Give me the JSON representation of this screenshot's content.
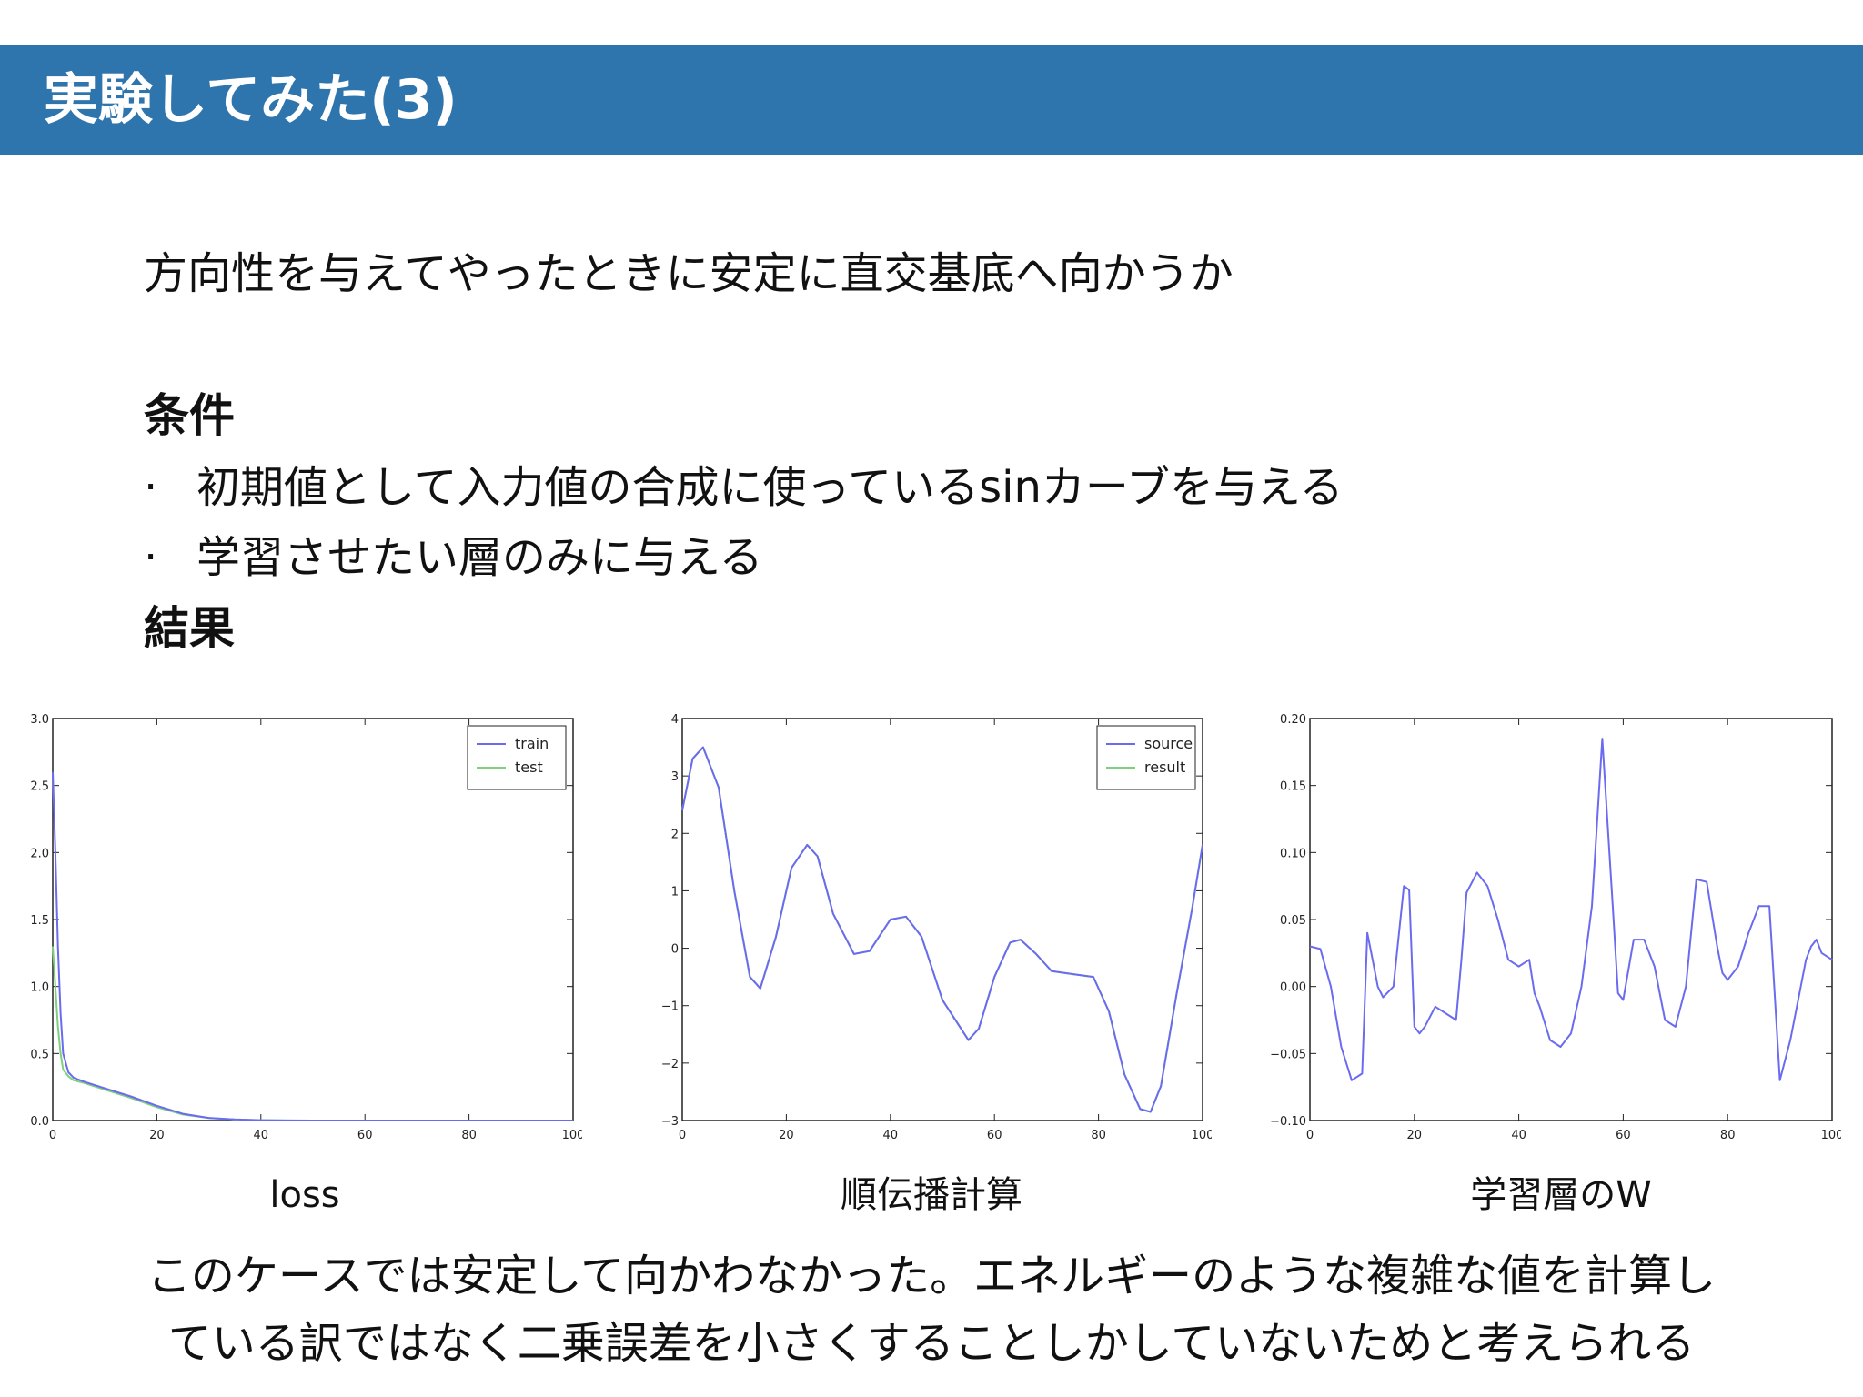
{
  "slide": {
    "title": "実験してみた(3)",
    "subtitle": "方向性を与えてやったときに安定に直交基底へ向かうか",
    "conditions_heading": "条件",
    "bullet_marker": "·",
    "conditions": [
      "初期値として入力値の合成に使っているsinカーブを与える",
      "学習させたい層のみに与える"
    ],
    "result_heading": "結果",
    "conclusion_lines": [
      "このケースでは安定して向かわなかった。エネルギーのような複雑な値を計算し",
      "ている訳ではなく二乗誤差を小さくすることしかしていないためと考えられる"
    ]
  },
  "chart_data": [
    {
      "type": "line",
      "caption": "loss",
      "xlim": [
        0,
        100
      ],
      "ylim": [
        0.0,
        3.0
      ],
      "xticks": [
        "0",
        "20",
        "40",
        "60",
        "80",
        "100"
      ],
      "yticks": [
        "0.0",
        "0.5",
        "1.0",
        "1.5",
        "2.0",
        "2.5",
        "3.0"
      ],
      "legend_placement": "top-right",
      "series": [
        {
          "name": "train",
          "color": "#6b6bf0",
          "x": [
            0,
            0.5,
            1,
            1.5,
            2,
            3,
            4,
            6,
            10,
            15,
            20,
            25,
            30,
            35,
            40,
            45,
            50,
            60,
            80,
            100
          ],
          "y": [
            2.6,
            2.0,
            1.3,
            0.8,
            0.5,
            0.36,
            0.32,
            0.29,
            0.24,
            0.18,
            0.11,
            0.05,
            0.02,
            0.008,
            0.003,
            0.001,
            0.0,
            0.0,
            0.0,
            0.0
          ]
        },
        {
          "name": "test",
          "color": "#7fcf7f",
          "x": [
            0,
            0.5,
            1,
            1.5,
            2,
            3,
            4,
            6,
            10,
            15,
            20,
            25,
            30,
            35,
            40,
            45,
            50,
            60,
            80,
            100
          ],
          "y": [
            1.3,
            1.0,
            0.7,
            0.5,
            0.38,
            0.33,
            0.3,
            0.28,
            0.23,
            0.17,
            0.1,
            0.045,
            0.018,
            0.007,
            0.003,
            0.001,
            0.0,
            0.0,
            0.0,
            0.0
          ]
        }
      ]
    },
    {
      "type": "line",
      "caption": "順伝播計算",
      "xlim": [
        0,
        100
      ],
      "ylim": [
        -3,
        4
      ],
      "xticks": [
        "0",
        "20",
        "40",
        "60",
        "80",
        "100"
      ],
      "yticks": [
        "−3",
        "−2",
        "−1",
        "0",
        "1",
        "2",
        "3",
        "4"
      ],
      "legend_placement": "top-right",
      "series": [
        {
          "name": "source",
          "color": "#6b6bf0",
          "x": [
            0,
            2,
            4,
            7,
            10,
            13,
            15,
            18,
            21,
            24,
            26,
            29,
            33,
            36,
            40,
            43,
            46,
            50,
            55,
            57,
            60,
            63,
            65,
            68,
            71,
            75,
            79,
            82,
            85,
            88,
            90,
            92,
            95,
            98,
            100
          ],
          "y": [
            2.4,
            3.3,
            3.5,
            2.8,
            1.0,
            -0.5,
            -0.7,
            0.2,
            1.4,
            1.8,
            1.6,
            0.6,
            -0.1,
            -0.05,
            0.5,
            0.55,
            0.2,
            -0.9,
            -1.6,
            -1.4,
            -0.5,
            0.1,
            0.15,
            -0.1,
            -0.4,
            -0.45,
            -0.5,
            -1.1,
            -2.2,
            -2.8,
            -2.85,
            -2.4,
            -0.8,
            0.7,
            1.8
          ]
        },
        {
          "name": "result",
          "color": "#7fcf7f",
          "x": [
            0,
            2,
            4,
            7,
            10,
            13,
            15,
            18,
            21,
            24,
            26,
            29,
            33,
            36,
            40,
            43,
            46,
            50,
            55,
            57,
            60,
            63,
            65,
            68,
            71,
            75,
            79,
            82,
            85,
            88,
            90,
            92,
            95,
            98,
            100
          ],
          "y": [
            2.4,
            3.3,
            3.5,
            2.8,
            1.0,
            -0.5,
            -0.7,
            0.2,
            1.4,
            1.8,
            1.6,
            0.6,
            -0.1,
            -0.05,
            0.5,
            0.55,
            0.2,
            -0.9,
            -1.6,
            -1.4,
            -0.5,
            0.1,
            0.15,
            -0.1,
            -0.4,
            -0.45,
            -0.5,
            -1.1,
            -2.2,
            -2.8,
            -2.85,
            -2.4,
            -0.8,
            0.7,
            1.8
          ]
        }
      ]
    },
    {
      "type": "line",
      "caption": "学習層のW",
      "xlim": [
        0,
        100
      ],
      "ylim": [
        -0.1,
        0.2
      ],
      "xticks": [
        "0",
        "20",
        "40",
        "60",
        "80",
        "100"
      ],
      "yticks": [
        "−0.10",
        "−0.05",
        "0.00",
        "0.05",
        "0.10",
        "0.15",
        "0.20"
      ],
      "series": [
        {
          "name": "",
          "color": "#6b6bf0",
          "x": [
            0,
            2,
            4,
            6,
            8,
            10,
            11,
            12,
            13,
            14,
            16,
            18,
            19,
            20,
            21,
            22,
            24,
            26,
            28,
            29,
            30,
            32,
            34,
            36,
            38,
            40,
            42,
            43,
            44,
            46,
            48,
            50,
            52,
            54,
            56,
            58,
            59,
            60,
            62,
            64,
            66,
            68,
            70,
            72,
            74,
            76,
            78,
            79,
            80,
            82,
            84,
            86,
            88,
            90,
            92,
            94,
            95,
            96,
            97,
            98,
            100
          ],
          "y": [
            0.03,
            0.028,
            0.0,
            -0.045,
            -0.07,
            -0.065,
            0.04,
            0.02,
            0.0,
            -0.008,
            0.0,
            0.075,
            0.072,
            -0.03,
            -0.035,
            -0.03,
            -0.015,
            -0.02,
            -0.025,
            0.02,
            0.07,
            0.085,
            0.075,
            0.05,
            0.02,
            0.015,
            0.02,
            -0.005,
            -0.015,
            -0.04,
            -0.045,
            -0.035,
            0.0,
            0.06,
            0.185,
            0.06,
            -0.005,
            -0.01,
            0.035,
            0.035,
            0.015,
            -0.025,
            -0.03,
            0.0,
            0.08,
            0.078,
            0.03,
            0.01,
            0.005,
            0.015,
            0.04,
            0.06,
            0.06,
            -0.07,
            -0.04,
            0.0,
            0.02,
            0.03,
            0.035,
            0.025,
            0.02
          ]
        }
      ]
    }
  ]
}
